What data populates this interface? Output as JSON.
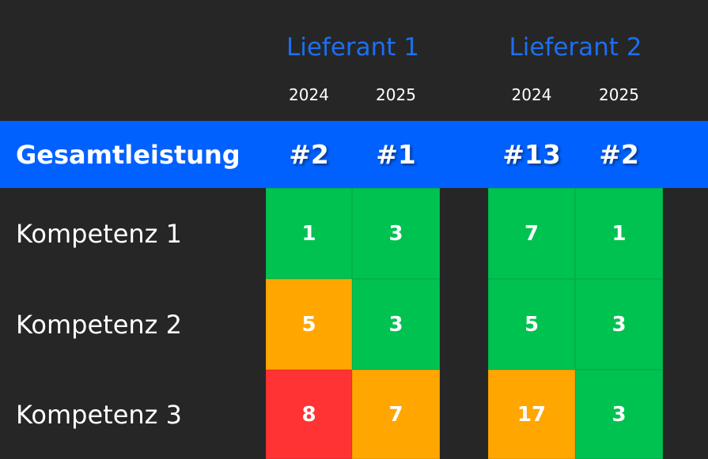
{
  "suppliers": [
    {
      "name": "Lieferant 1",
      "years": [
        "2024",
        "2025"
      ]
    },
    {
      "name": "Lieferant 2",
      "years": [
        "2024",
        "2025"
      ]
    }
  ],
  "overall": {
    "label": "Gesamtleistung",
    "ranks": [
      "#2",
      "#1",
      "#13",
      "#2"
    ]
  },
  "rows": [
    {
      "label": "Kompetenz 1",
      "cells": [
        {
          "value": 1,
          "color": "#00c251"
        },
        {
          "value": 3,
          "color": "#00c251"
        },
        {
          "value": 7,
          "color": "#00c251"
        },
        {
          "value": 1,
          "color": "#00c251"
        }
      ]
    },
    {
      "label": "Kompetenz 2",
      "cells": [
        {
          "value": 5,
          "color": "#ffa600"
        },
        {
          "value": 3,
          "color": "#00c251"
        },
        {
          "value": 5,
          "color": "#00c251"
        },
        {
          "value": 3,
          "color": "#00c251"
        }
      ]
    },
    {
      "label": "Kompetenz 3",
      "cells": [
        {
          "value": 8,
          "color": "#ff3333"
        },
        {
          "value": 7,
          "color": "#ffa600"
        },
        {
          "value": 17,
          "color": "#ffa600"
        },
        {
          "value": 3,
          "color": "#00c251"
        }
      ]
    }
  ]
}
